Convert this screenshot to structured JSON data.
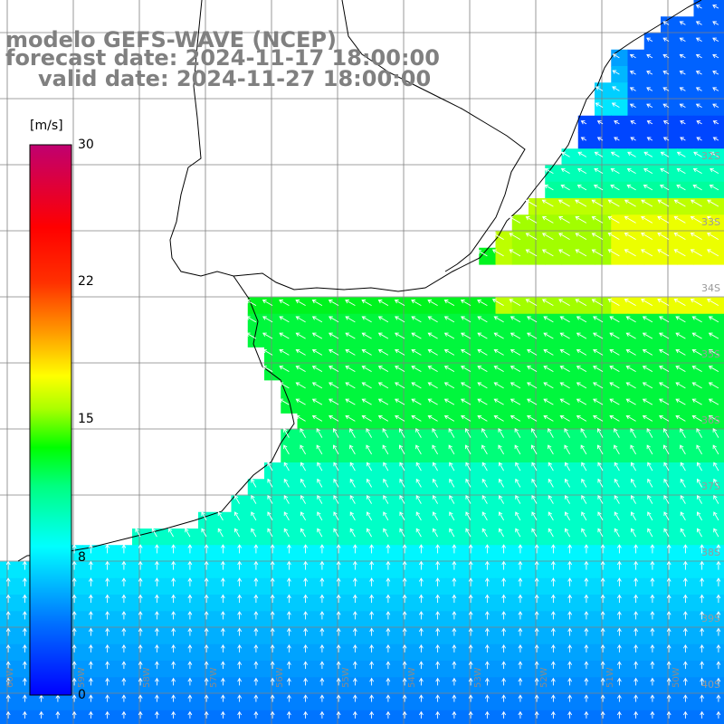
{
  "title": {
    "line1": "modelo GEFS-WAVE (NCEP)",
    "line2": "forecast date: 2024-11-17 18:00:00",
    "line3": "valid date: 2024-11-27 18:00:00"
  },
  "colorbar": {
    "unit": "[m/s]",
    "ticks": [
      "30",
      "22",
      "15",
      "8",
      "0"
    ],
    "tick_values": [
      30,
      22,
      15,
      8,
      0
    ],
    "min": 0,
    "max": 30,
    "colors": [
      "#0000ff",
      "#00a0ff",
      "#00ffff",
      "#00ff80",
      "#00e000",
      "#80ff00",
      "#ffff00",
      "#ffa000",
      "#ff4000",
      "#ff0000",
      "#c00060"
    ]
  },
  "lat_labels": [
    "32S",
    "33S",
    "34S",
    "35S",
    "36S",
    "37S",
    "38S",
    "39S",
    "40S"
  ],
  "lon_labels": [
    "60W",
    "59W",
    "58W",
    "57W",
    "56W",
    "55W",
    "54W",
    "53W",
    "52W",
    "51W",
    "50W"
  ],
  "colors": {
    "land": "#ffffff",
    "grid": "#808080",
    "coast": "#000000",
    "arrows": "#ffffff"
  }
}
